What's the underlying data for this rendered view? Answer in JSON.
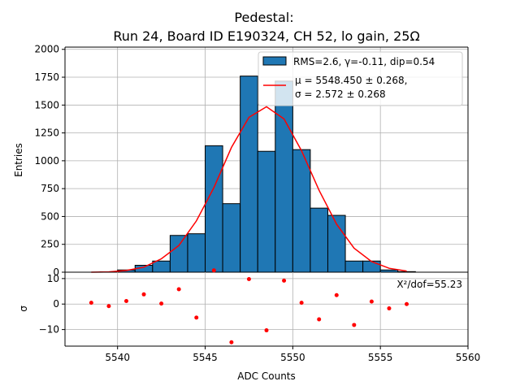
{
  "chart_data": [
    {
      "type": "bar",
      "title_line1": "Pedestal:",
      "title_line2": "Run 24, Board ID E190324, CH 52, lo gain, 25Ω",
      "xlabel": "",
      "ylabel": "Entries",
      "xlim": [
        5537,
        5560
      ],
      "ylim": [
        0,
        2020
      ],
      "yticks": [
        0,
        250,
        500,
        750,
        1000,
        1250,
        1500,
        1750,
        2000
      ],
      "grid": true,
      "legend_position": "top-right",
      "bar_color": "#1f77b4",
      "fit_color": "#ff0000",
      "bins": [
        {
          "x0": 5538,
          "x1": 5539,
          "count": 0
        },
        {
          "x0": 5539,
          "x1": 5540,
          "count": 3
        },
        {
          "x0": 5540,
          "x1": 5541,
          "count": 20
        },
        {
          "x0": 5541,
          "x1": 5542,
          "count": 62
        },
        {
          "x0": 5542,
          "x1": 5543,
          "count": 100
        },
        {
          "x0": 5543,
          "x1": 5544,
          "count": 330
        },
        {
          "x0": 5544,
          "x1": 5545,
          "count": 345
        },
        {
          "x0": 5545,
          "x1": 5546,
          "count": 1135
        },
        {
          "x0": 5546,
          "x1": 5547,
          "count": 615
        },
        {
          "x0": 5547,
          "x1": 5548,
          "count": 1760
        },
        {
          "x0": 5548,
          "x1": 5549,
          "count": 1085
        },
        {
          "x0": 5549,
          "x1": 5550,
          "count": 1715
        },
        {
          "x0": 5550,
          "x1": 5551,
          "count": 1100
        },
        {
          "x0": 5551,
          "x1": 5552,
          "count": 575
        },
        {
          "x0": 5552,
          "x1": 5553,
          "count": 510
        },
        {
          "x0": 5553,
          "x1": 5554,
          "count": 100
        },
        {
          "x0": 5554,
          "x1": 5555,
          "count": 100
        },
        {
          "x0": 5555,
          "x1": 5556,
          "count": 20
        },
        {
          "x0": 5556,
          "x1": 5557,
          "count": 5
        }
      ],
      "fit_curve": {
        "x": [
          5538.5,
          5539.5,
          5540.5,
          5541.5,
          5542.5,
          5543.5,
          5544.5,
          5545.5,
          5546.5,
          5547.5,
          5548.5,
          5549.5,
          5550.5,
          5551.5,
          5552.5,
          5553.5,
          5554.5,
          5555.5,
          5556.5
        ],
        "y": [
          0,
          3,
          15,
          45,
          120,
          240,
          460,
          760,
          1120,
          1390,
          1485,
          1375,
          1090,
          735,
          430,
          215,
          95,
          35,
          10
        ]
      },
      "legend": [
        {
          "kind": "bar",
          "label": "RMS=2.6, γ=-0.11, dip=0.54"
        },
        {
          "kind": "line",
          "label_line1": "μ = 5548.450 ± 0.268,",
          "label_line2": "σ = 2.572 ± 0.268"
        }
      ]
    },
    {
      "type": "scatter",
      "xlabel": "ADC Counts",
      "ylabel": "σ",
      "xlim": [
        5537,
        5560
      ],
      "ylim": [
        -16.5,
        12.5
      ],
      "xticks": [
        5540,
        5545,
        5550,
        5555,
        5560
      ],
      "yticks": [
        -10,
        0,
        10
      ],
      "grid": true,
      "point_color": "#ff0000",
      "annotation": "X²/dof=55.23",
      "points": {
        "x": [
          5538.5,
          5539.5,
          5540.5,
          5541.5,
          5542.5,
          5543.5,
          5544.5,
          5545.5,
          5546.5,
          5547.5,
          5548.5,
          5549.5,
          5550.5,
          5551.5,
          5552.5,
          5553.5,
          5554.5,
          5555.5,
          5556.5
        ],
        "y": [
          0.5,
          -0.8,
          1.2,
          3.8,
          0.2,
          5.8,
          -5.3,
          13.2,
          -15.0,
          9.8,
          -10.3,
          9.2,
          0.5,
          -6.0,
          3.5,
          -8.2,
          1.0,
          -1.7,
          0.0
        ]
      }
    }
  ]
}
